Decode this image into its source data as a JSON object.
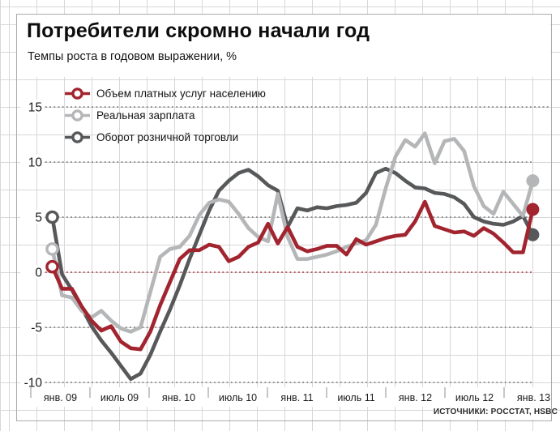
{
  "header": {
    "title": "Потребители скромно начали год",
    "subtitle": "Темпы роста в годовом выражении, %"
  },
  "source": "ИСТОЧНИКИ: РОССТАТ, HSBC",
  "chart_data": {
    "type": "line",
    "title": "Потребители скромно начали год",
    "subtitle": "Темпы роста в годовом выражении, %",
    "ylabel": "",
    "xlabel": "",
    "ylim": [
      -10,
      15
    ],
    "y_ticks": [
      15,
      10,
      5,
      0,
      -5,
      -10
    ],
    "grid": "on",
    "legend_position": "top-left",
    "x_tick_labels": [
      "янв. 09",
      "июль 09",
      "янв. 10",
      "июль 10",
      "янв. 11",
      "июль 11",
      "янв. 12",
      "июль 12",
      "янв. 13"
    ],
    "zero_line_color": "#b12b35",
    "points_per_series": 50,
    "series": [
      {
        "name": "Объем платных услуг населению",
        "color": "#a2242f",
        "values": [
          0.5,
          -1.5,
          -1.5,
          -3.1,
          -4.4,
          -5.3,
          -4.9,
          -6.3,
          -6.9,
          -7.0,
          -5.4,
          -3.0,
          -0.9,
          1.2,
          2.0,
          2.0,
          2.5,
          2.3,
          1.0,
          1.4,
          2.3,
          2.7,
          4.4,
          2.6,
          4.1,
          2.3,
          1.9,
          2.1,
          2.4,
          2.4,
          1.6,
          3.0,
          2.5,
          2.8,
          3.1,
          3.3,
          3.4,
          4.6,
          6.4,
          4.2,
          3.9,
          3.6,
          3.7,
          3.3,
          4.0,
          3.5,
          2.7,
          1.8,
          1.8,
          5.7
        ]
      },
      {
        "name": "Реальная зарплата",
        "color": "#b5b6b8",
        "values": [
          2.1,
          -2.1,
          -2.3,
          -3.5,
          -4.1,
          -3.5,
          -4.4,
          -5.1,
          -5.4,
          -5.0,
          -1.8,
          1.4,
          2.1,
          2.3,
          3.3,
          5.2,
          6.3,
          6.6,
          6.4,
          5.3,
          4.0,
          3.2,
          2.8,
          7.1,
          3.2,
          1.2,
          1.2,
          1.4,
          1.6,
          1.9,
          2.3,
          2.6,
          2.9,
          4.3,
          7.6,
          10.5,
          12.0,
          11.4,
          12.6,
          9.9,
          11.9,
          12.1,
          11.0,
          7.8,
          6.0,
          5.3,
          7.3,
          6.2,
          5.1,
          8.3
        ]
      },
      {
        "name": "Оборот розничной торговли",
        "color": "#57585a",
        "values": [
          5.0,
          -0.2,
          -1.6,
          -3.2,
          -4.9,
          -6.2,
          -7.3,
          -8.5,
          -9.7,
          -9.2,
          -7.5,
          -5.4,
          -3.4,
          -1.2,
          1.2,
          3.4,
          5.6,
          7.4,
          8.3,
          9.0,
          9.3,
          8.7,
          7.9,
          7.4,
          4.1,
          5.8,
          5.6,
          5.9,
          5.8,
          6.0,
          6.1,
          6.3,
          7.2,
          9.0,
          9.4,
          9.0,
          8.3,
          7.7,
          7.6,
          7.2,
          7.1,
          6.8,
          6.2,
          5.0,
          4.6,
          4.4,
          4.3,
          4.6,
          5.1,
          3.4
        ]
      }
    ]
  }
}
